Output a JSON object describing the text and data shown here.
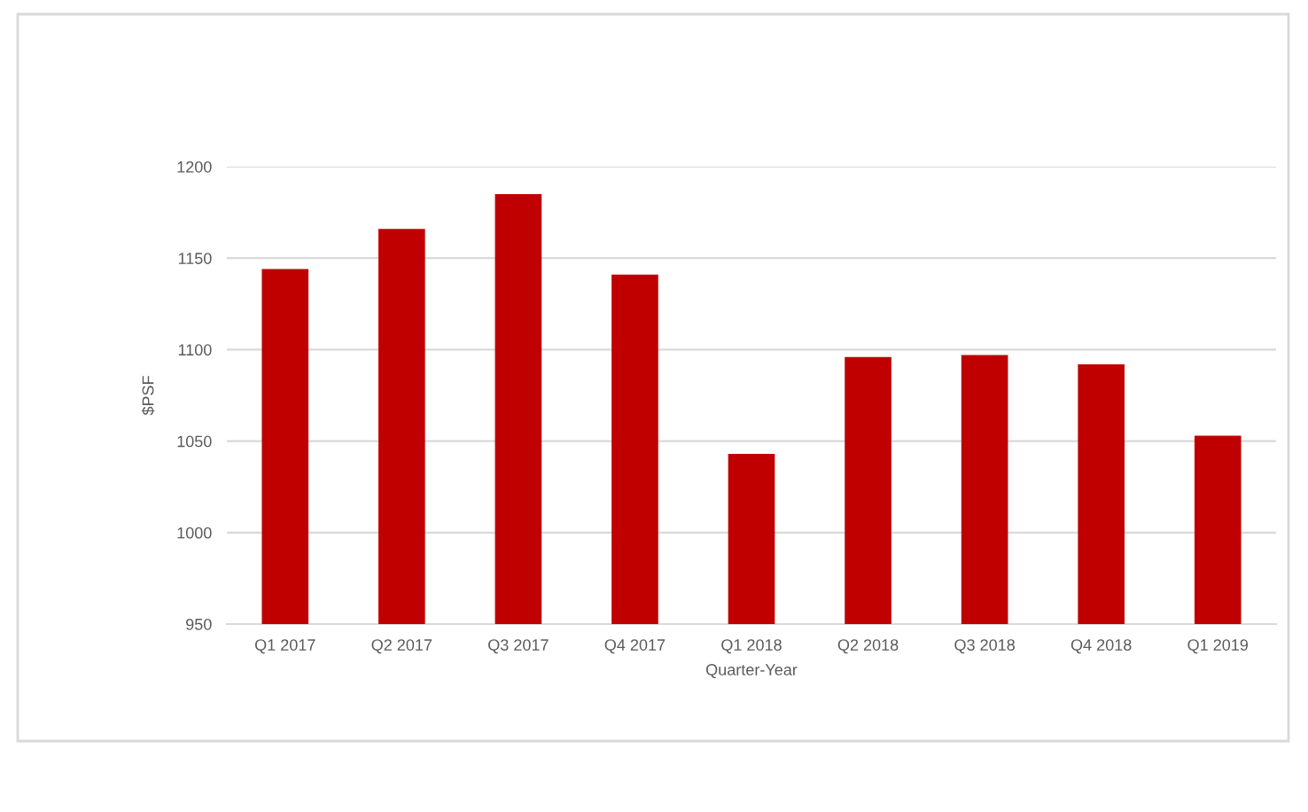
{
  "chart_data": {
    "type": "bar",
    "xlabel": "Quarter-Year",
    "ylabel": "$PSF",
    "categories": [
      "Q1 2017",
      "Q2 2017",
      "Q3 2017",
      "Q4 2017",
      "Q1 2018",
      "Q2 2018",
      "Q3 2018",
      "Q4 2018",
      "Q1 2019"
    ],
    "values": [
      1144,
      1166,
      1185,
      1141,
      1043,
      1096,
      1097,
      1092,
      1053
    ],
    "color": "#c00000",
    "ylim": [
      950,
      1200
    ],
    "yticks": [
      950,
      1000,
      1050,
      1100,
      1150,
      1200
    ],
    "grid": "y"
  }
}
